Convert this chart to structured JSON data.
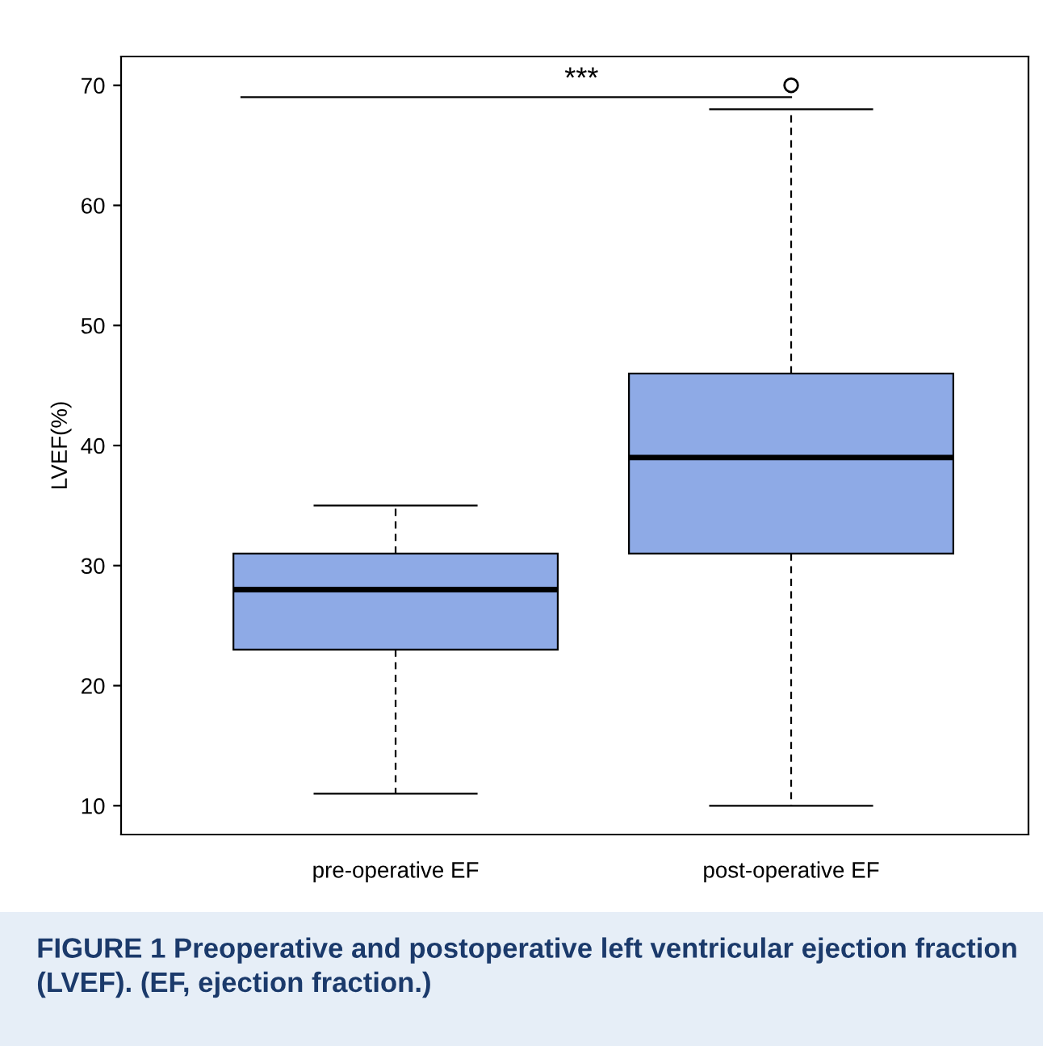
{
  "chart_data": {
    "type": "box",
    "ylabel": "LVEF(%)",
    "categories": [
      "pre-operative EF",
      "post-operative EF"
    ],
    "boxes": [
      {
        "low": 11,
        "q1": 23,
        "median": 28,
        "q3": 31,
        "high": 35
      },
      {
        "low": 10,
        "q1": 31,
        "median": 39,
        "q3": 46,
        "high": 68,
        "outliers": [
          70
        ]
      }
    ],
    "color": "#8eaae6",
    "ylim": [
      7.6,
      72.4
    ],
    "yticks": [
      10,
      20,
      30,
      40,
      50,
      60,
      70
    ],
    "grid": false,
    "legend": false,
    "annotations": [
      "***",
      "FIGURE 1 Preoperative and postoperative left ventricular ejection fraction (LVEF). (EF, ejection fraction.)"
    ]
  }
}
